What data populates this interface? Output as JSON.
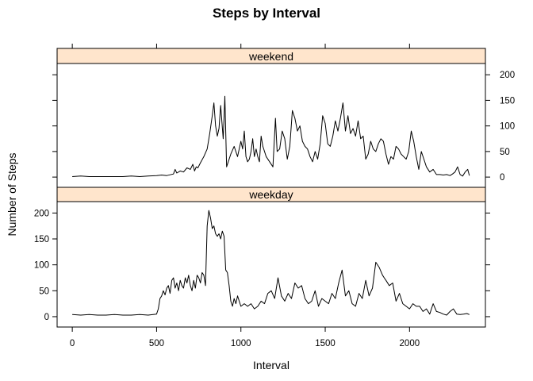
{
  "chart_data": {
    "type": "line",
    "title": "Steps by Interval",
    "xlabel": "Interval",
    "ylabel": "Number of Steps",
    "xlim": [
      -90,
      2450
    ],
    "ylim": [
      -20,
      222
    ],
    "x_ticks": [
      0,
      500,
      1000,
      1500,
      2000
    ],
    "x_tick_labels": [
      "0",
      "500",
      "1000",
      "1500",
      "2000"
    ],
    "y_ticks": [
      0,
      50,
      100,
      150,
      200
    ],
    "y_tick_labels": [
      "0",
      "50",
      "100",
      "150",
      "200"
    ],
    "panels": [
      {
        "name": "weekend",
        "x": [
          0,
          50,
          100,
          150,
          200,
          250,
          300,
          350,
          400,
          450,
          500,
          530,
          560,
          600,
          610,
          620,
          640,
          660,
          680,
          700,
          715,
          725,
          735,
          745,
          760,
          780,
          800,
          815,
          830,
          840,
          850,
          860,
          870,
          880,
          895,
          905,
          915,
          925,
          940,
          960,
          980,
          1000,
          1010,
          1020,
          1030,
          1040,
          1050,
          1060,
          1070,
          1080,
          1090,
          1100,
          1110,
          1120,
          1130,
          1150,
          1170,
          1190,
          1205,
          1215,
          1230,
          1245,
          1260,
          1275,
          1290,
          1305,
          1320,
          1335,
          1350,
          1365,
          1380,
          1395,
          1410,
          1425,
          1440,
          1455,
          1470,
          1485,
          1500,
          1515,
          1530,
          1545,
          1560,
          1575,
          1590,
          1605,
          1620,
          1635,
          1650,
          1665,
          1680,
          1695,
          1710,
          1725,
          1740,
          1755,
          1770,
          1785,
          1800,
          1815,
          1830,
          1845,
          1860,
          1875,
          1890,
          1905,
          1920,
          1935,
          1950,
          1965,
          1980,
          1995,
          2010,
          2025,
          2040,
          2055,
          2070,
          2085,
          2100,
          2120,
          2140,
          2160,
          2180,
          2200,
          2220,
          2240,
          2255,
          2270,
          2285,
          2300,
          2315,
          2330,
          2345,
          2355
        ],
        "y": [
          1,
          2,
          1,
          1,
          1,
          1,
          1,
          2,
          1,
          2,
          3,
          4,
          3,
          6,
          15,
          8,
          12,
          10,
          18,
          15,
          25,
          12,
          20,
          18,
          28,
          40,
          55,
          85,
          120,
          145,
          100,
          80,
          95,
          140,
          75,
          158,
          20,
          30,
          45,
          60,
          40,
          70,
          55,
          90,
          40,
          30,
          35,
          50,
          75,
          40,
          55,
          40,
          30,
          80,
          60,
          40,
          30,
          20,
          115,
          50,
          55,
          90,
          75,
          35,
          60,
          130,
          115,
          90,
          100,
          70,
          60,
          55,
          40,
          30,
          50,
          35,
          65,
          120,
          105,
          65,
          60,
          80,
          110,
          90,
          115,
          145,
          90,
          120,
          85,
          95,
          80,
          110,
          75,
          80,
          35,
          45,
          70,
          55,
          50,
          65,
          75,
          70,
          45,
          25,
          40,
          35,
          60,
          55,
          45,
          40,
          35,
          50,
          90,
          70,
          40,
          15,
          50,
          35,
          20,
          10,
          15,
          5,
          5,
          4,
          5,
          3,
          6,
          10,
          20,
          5,
          2,
          10,
          15,
          3
        ],
        "values": [
          1,
          2,
          1,
          1,
          1,
          1,
          1,
          2,
          1,
          2,
          3,
          4,
          3,
          6,
          15,
          8,
          12,
          10,
          18,
          15,
          25,
          12,
          20,
          18,
          28,
          40,
          55,
          85,
          120,
          145,
          100,
          80,
          95,
          140,
          75,
          158,
          20,
          30,
          45,
          60,
          40,
          70,
          55,
          90,
          40,
          30,
          35,
          50,
          75,
          40,
          55,
          40,
          30,
          80,
          60,
          40,
          30,
          20,
          115,
          50,
          55,
          90,
          75,
          35,
          60,
          130,
          115,
          90,
          100,
          70,
          60,
          55,
          40,
          30,
          50,
          35,
          65,
          120,
          105,
          65,
          60,
          80,
          110,
          90,
          115,
          145,
          90,
          120,
          85,
          95,
          80,
          110,
          75,
          80,
          35,
          45,
          70,
          55,
          50,
          65,
          75,
          70,
          45,
          25,
          40,
          35,
          60,
          55,
          45,
          40,
          35,
          50,
          90,
          70,
          40,
          15,
          50,
          35,
          20,
          10,
          15,
          5,
          5,
          4,
          5,
          3,
          6,
          10,
          20,
          5,
          2,
          10,
          15,
          3
        ]
      },
      {
        "name": "weekday",
        "x": [
          0,
          50,
          100,
          150,
          200,
          250,
          300,
          350,
          400,
          450,
          500,
          510,
          520,
          530,
          540,
          550,
          560,
          570,
          580,
          590,
          600,
          610,
          620,
          630,
          640,
          650,
          660,
          670,
          680,
          690,
          700,
          710,
          720,
          730,
          740,
          750,
          760,
          770,
          780,
          790,
          800,
          810,
          820,
          830,
          840,
          850,
          860,
          870,
          880,
          890,
          900,
          910,
          920,
          930,
          940,
          950,
          960,
          970,
          980,
          990,
          1000,
          1020,
          1040,
          1060,
          1080,
          1100,
          1120,
          1140,
          1160,
          1180,
          1200,
          1220,
          1240,
          1260,
          1280,
          1300,
          1320,
          1340,
          1360,
          1380,
          1400,
          1420,
          1440,
          1460,
          1480,
          1500,
          1520,
          1540,
          1560,
          1580,
          1600,
          1620,
          1640,
          1660,
          1680,
          1700,
          1720,
          1740,
          1760,
          1780,
          1800,
          1820,
          1840,
          1850,
          1860,
          1880,
          1900,
          1920,
          1940,
          1960,
          1980,
          2000,
          2020,
          2040,
          2060,
          2080,
          2100,
          2120,
          2140,
          2160,
          2180,
          2200,
          2220,
          2240,
          2260,
          2280,
          2300,
          2320,
          2340,
          2355
        ],
        "y": [
          4,
          3,
          4,
          3,
          3,
          4,
          3,
          3,
          4,
          3,
          5,
          15,
          35,
          40,
          50,
          42,
          55,
          60,
          45,
          70,
          75,
          55,
          65,
          50,
          70,
          60,
          55,
          75,
          65,
          80,
          60,
          50,
          70,
          55,
          80,
          75,
          65,
          85,
          80,
          60,
          175,
          205,
          190,
          170,
          175,
          160,
          155,
          160,
          150,
          165,
          155,
          90,
          85,
          60,
          30,
          20,
          35,
          25,
          40,
          30,
          20,
          25,
          20,
          25,
          15,
          20,
          30,
          25,
          45,
          50,
          35,
          75,
          40,
          30,
          45,
          35,
          65,
          55,
          60,
          35,
          25,
          30,
          50,
          20,
          35,
          30,
          25,
          45,
          35,
          65,
          90,
          40,
          50,
          25,
          20,
          45,
          35,
          70,
          40,
          55,
          105,
          95,
          80,
          75,
          70,
          60,
          65,
          30,
          45,
          25,
          20,
          15,
          25,
          20,
          20,
          10,
          15,
          5,
          25,
          10,
          8,
          5,
          3,
          10,
          15,
          5,
          4,
          5,
          6,
          4
        ],
        "values": [
          4,
          3,
          4,
          3,
          3,
          4,
          3,
          3,
          4,
          3,
          5,
          15,
          35,
          40,
          50,
          42,
          55,
          60,
          45,
          70,
          75,
          55,
          65,
          50,
          70,
          60,
          55,
          75,
          65,
          80,
          60,
          50,
          70,
          55,
          80,
          75,
          65,
          85,
          80,
          60,
          175,
          205,
          190,
          170,
          175,
          160,
          155,
          160,
          150,
          165,
          155,
          90,
          85,
          60,
          30,
          20,
          35,
          25,
          40,
          30,
          20,
          25,
          20,
          25,
          15,
          20,
          30,
          25,
          45,
          50,
          35,
          75,
          40,
          30,
          45,
          35,
          65,
          55,
          60,
          35,
          25,
          30,
          50,
          20,
          35,
          30,
          25,
          45,
          35,
          65,
          90,
          40,
          50,
          25,
          20,
          45,
          35,
          70,
          40,
          55,
          105,
          95,
          80,
          75,
          70,
          60,
          65,
          30,
          45,
          25,
          20,
          15,
          25,
          20,
          20,
          10,
          15,
          5,
          25,
          10,
          8,
          5,
          3,
          10,
          15,
          5,
          4,
          5,
          6,
          4
        ]
      }
    ],
    "grid": false,
    "legend": "none",
    "line_color": "#000000",
    "strip_color": "#ffe5cc"
  }
}
